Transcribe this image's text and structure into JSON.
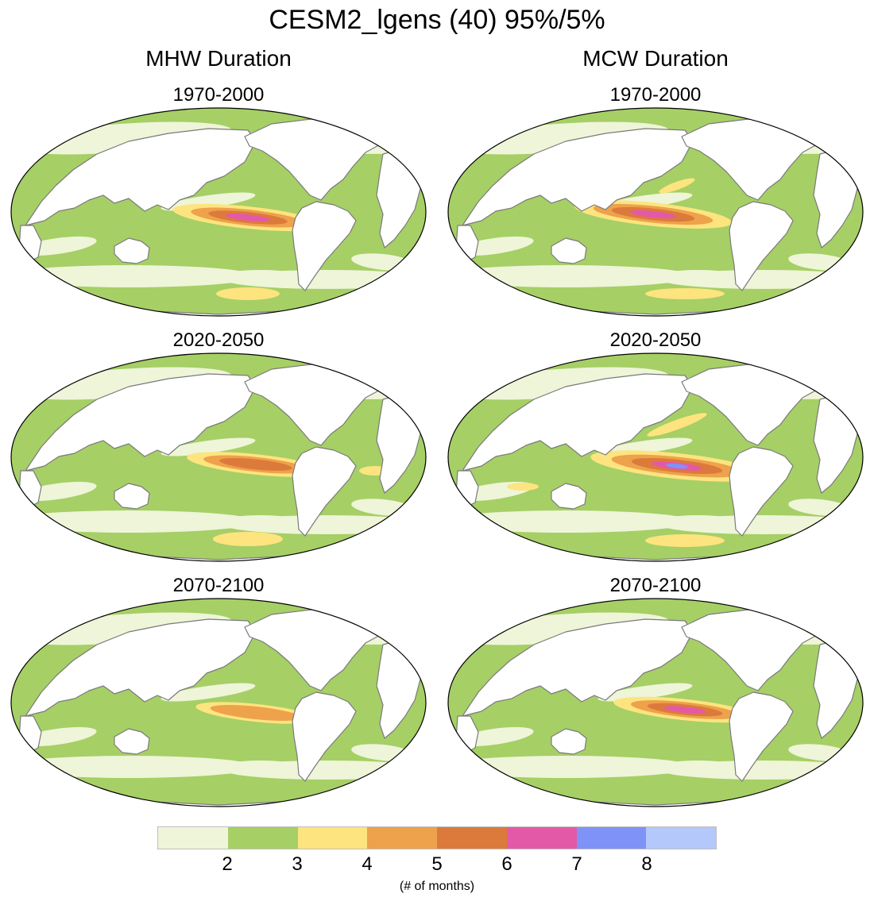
{
  "figure": {
    "title": "CESM2_lgens (40) 95%/5%",
    "columns": [
      {
        "title": "MHW Duration",
        "panels": [
          "1970-2000",
          "2020-2050",
          "2070-2100"
        ]
      },
      {
        "title": "MCW Duration",
        "panels": [
          "1970-2000",
          "2020-2050",
          "2070-2100"
        ]
      }
    ]
  },
  "colorbar": {
    "colors": [
      "#eef5d8",
      "#a6cf66",
      "#fde47f",
      "#eda24b",
      "#dc7a3b",
      "#e459a7",
      "#7f92f7",
      "#b4c8fb"
    ],
    "ticks": [
      "2",
      "3",
      "4",
      "5",
      "6",
      "7",
      "8"
    ],
    "units": "(# of months)"
  },
  "palette": {
    "land": "#ffffff",
    "coast": "#7a7a7a",
    "outline": "#000000"
  }
}
